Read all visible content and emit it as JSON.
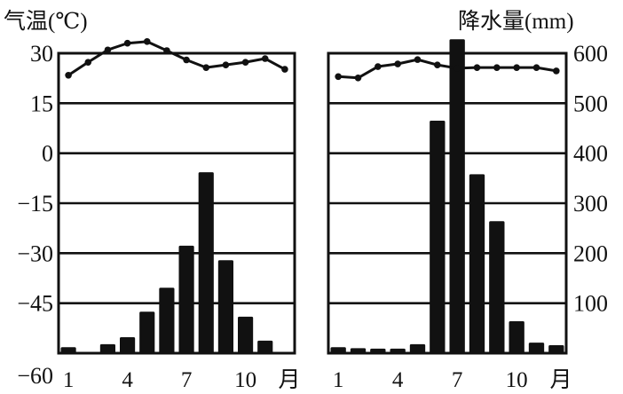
{
  "titles": {
    "temp_axis": "气温(℃)",
    "precip_axis": "降水量(mm)"
  },
  "axes": {
    "temp_ticks": [
      "30",
      "15",
      "0",
      "-15",
      "-30",
      "-45",
      "-60"
    ],
    "precip_ticks": [
      "600",
      "500",
      "400",
      "300",
      "200",
      "100"
    ],
    "month_ticks": [
      "1",
      "4",
      "7",
      "10"
    ],
    "month_unit": "月"
  },
  "colors": {
    "ink": "#111111",
    "background": "#ffffff"
  },
  "chart_data": [
    {
      "type": "bar+line",
      "title": "Left climate chart",
      "categories": [
        "1",
        "2",
        "3",
        "4",
        "5",
        "6",
        "7",
        "8",
        "9",
        "10",
        "11",
        "12"
      ],
      "xlabel": "月",
      "ylabel_left": "气温(℃)",
      "ylim_left": [
        -60,
        30
      ],
      "ylabel_right": "降水量(mm)",
      "ylim_right": [
        0,
        600
      ],
      "series": [
        {
          "name": "降水量",
          "type": "bar",
          "axis": "right",
          "values": [
            12,
            0,
            18,
            32,
            83,
            131,
            215,
            362,
            186,
            73,
            25,
            0
          ]
        },
        {
          "name": "气温",
          "type": "line",
          "axis": "left",
          "values": [
            23.4,
            27.3,
            31,
            33,
            33.5,
            30.8,
            28,
            25.7,
            26.5,
            27.3,
            28.4,
            25.2
          ]
        }
      ],
      "grid": true
    },
    {
      "type": "bar+line",
      "title": "Right climate chart",
      "categories": [
        "1",
        "2",
        "3",
        "4",
        "5",
        "6",
        "7",
        "8",
        "9",
        "10",
        "11",
        "12"
      ],
      "xlabel": "月",
      "ylabel_left": "气温(℃)",
      "ylim_left": [
        -60,
        30
      ],
      "ylabel_right": "降水量(mm)",
      "ylim_right": [
        0,
        600
      ],
      "series": [
        {
          "name": "降水量",
          "type": "bar",
          "axis": "right",
          "values": [
            12,
            10,
            9,
            9,
            18,
            465,
            628,
            358,
            264,
            64,
            21,
            16
          ]
        },
        {
          "name": "气温",
          "type": "line",
          "axis": "left",
          "values": [
            23,
            22.6,
            26,
            26.8,
            28.1,
            26.5,
            25.5,
            25.7,
            25.7,
            25.7,
            25.7,
            24.7
          ]
        }
      ],
      "grid": true
    }
  ]
}
